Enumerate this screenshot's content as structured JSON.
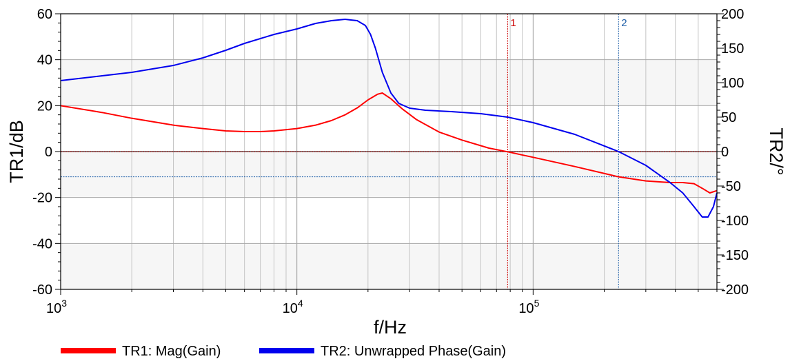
{
  "chart_data": {
    "type": "line",
    "xscale": "log",
    "xlim": [
      1000,
      600000
    ],
    "xlabel": "f/Hz",
    "xticks": [
      {
        "value": 1000,
        "base": "10",
        "exp": "3"
      },
      {
        "value": 10000,
        "base": "10",
        "exp": "4"
      },
      {
        "value": 100000,
        "base": "10",
        "exp": "5"
      }
    ],
    "y_left": {
      "label": "TR1/dB",
      "ylim": [
        -60,
        60
      ],
      "ticks": [
        60,
        40,
        20,
        0,
        -20,
        -40,
        -60
      ]
    },
    "y_right": {
      "label": "TR2/°",
      "ylim": [
        -200,
        200
      ],
      "ticks": [
        200,
        150,
        100,
        50,
        0,
        -50,
        -100,
        -150,
        -200
      ]
    },
    "grid": true,
    "legend_position": "bottom",
    "series": [
      {
        "name": "TR1: Mag(Gain)",
        "axis": "left",
        "color": "#ff0000",
        "x": [
          1000,
          1500,
          2000,
          3000,
          4000,
          5000,
          6000,
          7000,
          8000,
          10000,
          12000,
          14000,
          16000,
          18000,
          20000,
          22000,
          23000,
          25000,
          28000,
          32000,
          40000,
          50000,
          65000,
          78000,
          100000,
          150000,
          230000,
          300000,
          380000,
          430000,
          480000,
          520000,
          560000,
          600000
        ],
        "values": [
          20,
          17,
          14.5,
          11.5,
          10,
          9,
          8.7,
          8.7,
          9,
          10,
          11.5,
          13.5,
          16,
          19,
          22.5,
          25,
          25.5,
          23,
          18.5,
          14,
          8.5,
          5,
          1.5,
          -0.1,
          -2.5,
          -6.5,
          -11,
          -12.8,
          -13.5,
          -13.5,
          -14,
          -16,
          -18,
          -17
        ]
      },
      {
        "name": "TR2: Unwrapped Phase(Gain)",
        "axis": "right",
        "color": "#0000ee",
        "x": [
          1000,
          1500,
          2000,
          3000,
          4000,
          5000,
          6000,
          8000,
          10000,
          12000,
          14000,
          16000,
          18000,
          19500,
          20500,
          21500,
          23000,
          25000,
          27000,
          30000,
          35000,
          45000,
          60000,
          78000,
          100000,
          150000,
          230000,
          300000,
          380000,
          430000,
          480000,
          520000,
          550000,
          580000,
          600000
        ],
        "values": [
          103,
          110,
          115,
          125,
          136,
          147,
          157,
          170,
          178,
          186,
          190,
          192,
          190,
          183,
          170,
          150,
          115,
          85,
          70,
          63,
          60,
          58,
          55,
          50,
          42,
          25,
          0,
          -20,
          -45,
          -60,
          -80,
          -95,
          -95,
          -80,
          -60
        ]
      }
    ],
    "markers": [
      {
        "label": "1",
        "x": 78000,
        "y_left": -0.1,
        "color": "#cc0000"
      },
      {
        "label": "2",
        "x": 230000,
        "y_left": -11,
        "color": "#1f5fa8"
      }
    ]
  }
}
